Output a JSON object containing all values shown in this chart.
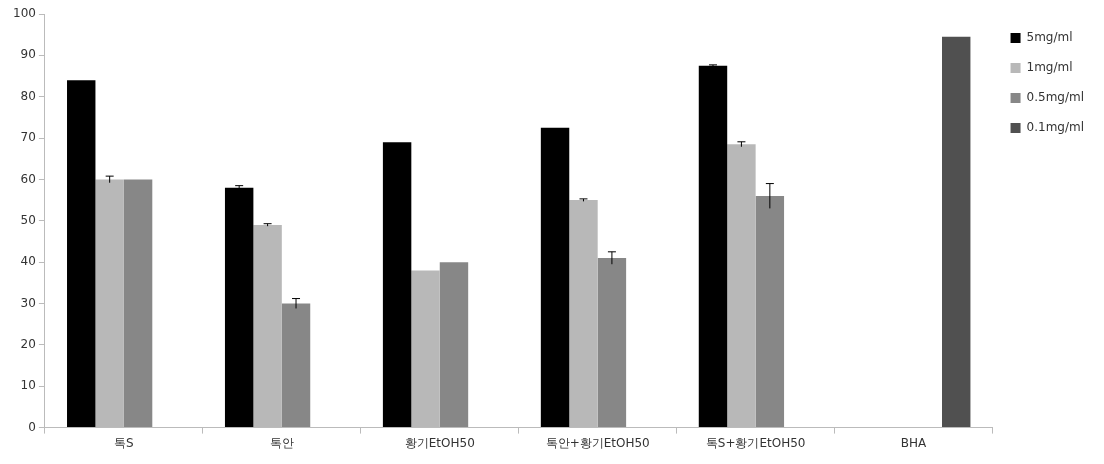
{
  "chart_data": {
    "type": "bar",
    "categories": [
      "톡S",
      "톡안",
      "황기EtOH50",
      "톡안+황기EtOH50",
      "톡S+황기EtOH50",
      "BHA"
    ],
    "series": [
      {
        "name": "5mg/ml",
        "color": "#000000",
        "values": [
          84,
          58,
          69,
          72.5,
          87.5,
          null
        ],
        "errors": [
          null,
          0.5,
          null,
          null,
          0.2,
          null
        ]
      },
      {
        "name": "1mg/ml",
        "color": "#b8b8b8",
        "values": [
          60,
          49,
          38,
          55,
          68.5,
          null
        ],
        "errors": [
          0.8,
          0.3,
          null,
          0.3,
          0.6,
          null
        ]
      },
      {
        "name": "0.5mg/ml",
        "color": "#878787",
        "values": [
          60,
          30,
          40,
          41,
          56,
          null
        ],
        "errors": [
          null,
          1.2,
          null,
          1.5,
          3,
          null
        ]
      },
      {
        "name": "0.1mg/ml",
        "color": "#505050",
        "values": [
          null,
          null,
          null,
          null,
          null,
          94.5
        ]
      }
    ],
    "ylim": [
      0,
      100
    ],
    "yticks": [
      0,
      10,
      20,
      30,
      40,
      50,
      60,
      70,
      80,
      90,
      100
    ],
    "grid": false,
    "legend": "right"
  }
}
